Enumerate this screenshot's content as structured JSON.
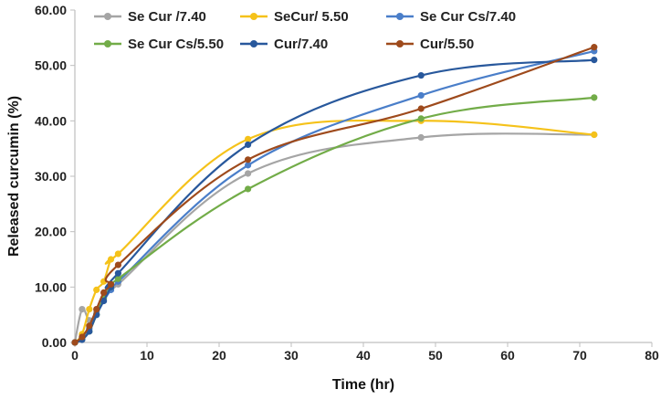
{
  "chart_data": {
    "type": "line",
    "title": "",
    "xlabel": "Time (hr)",
    "ylabel": "Released curcumin (%)",
    "xlim": [
      0,
      80
    ],
    "ylim": [
      0,
      60
    ],
    "x_ticks": [
      "0",
      "10",
      "20",
      "30",
      "40",
      "50",
      "60",
      "70",
      "80"
    ],
    "y_ticks": [
      "0.00",
      "10.00",
      "20.00",
      "30.00",
      "40.00",
      "50.00",
      "60.00"
    ],
    "grid": false,
    "legend_position": "top",
    "series": [
      {
        "name": "Se Cur /7.40",
        "color": "#a5a5a5",
        "x": [
          0,
          1,
          2,
          3,
          4,
          5,
          6,
          24,
          48,
          72
        ],
        "y": [
          0,
          6.0,
          4.0,
          5.5,
          8.0,
          9.5,
          10.5,
          30.5,
          37.0,
          37.5
        ]
      },
      {
        "name": "SeCur/ 5.50",
        "color": "#f5c21a",
        "x": [
          0,
          1,
          2,
          3,
          4,
          5,
          6,
          24,
          48,
          72
        ],
        "y": [
          0,
          1.5,
          6.0,
          9.5,
          11.0,
          15.0,
          16.0,
          36.7,
          40.0,
          37.5
        ]
      },
      {
        "name": "Se Cur Cs/7.40",
        "color": "#4a7ec9",
        "x": [
          0,
          1,
          2,
          3,
          4,
          5,
          6,
          24,
          48,
          72
        ],
        "y": [
          0,
          0.8,
          2.5,
          5.0,
          7.5,
          9.5,
          11.0,
          32.0,
          44.6,
          52.6
        ]
      },
      {
        "name": "Se Cur Cs/5.50",
        "color": "#72ac48",
        "x": [
          0,
          1,
          2,
          3,
          4,
          5,
          6,
          24,
          48,
          72
        ],
        "y": [
          0,
          0.6,
          2.0,
          5.0,
          8.0,
          10.0,
          11.5,
          27.7,
          40.4,
          44.2
        ]
      },
      {
        "name": "Cur/7.40",
        "color": "#28589c",
        "x": [
          0,
          1,
          2,
          3,
          4,
          5,
          6,
          24,
          48,
          72
        ],
        "y": [
          0,
          0.5,
          2.0,
          5.0,
          7.5,
          10.0,
          12.5,
          35.7,
          48.2,
          51.0
        ]
      },
      {
        "name": "Cur/5.50",
        "color": "#9e4a1c",
        "x": [
          0,
          1,
          2,
          3,
          4,
          5,
          6,
          24,
          48,
          72
        ],
        "y": [
          0,
          1.0,
          3.0,
          6.0,
          9.0,
          10.5,
          14.0,
          33.0,
          42.2,
          53.3
        ]
      }
    ]
  }
}
